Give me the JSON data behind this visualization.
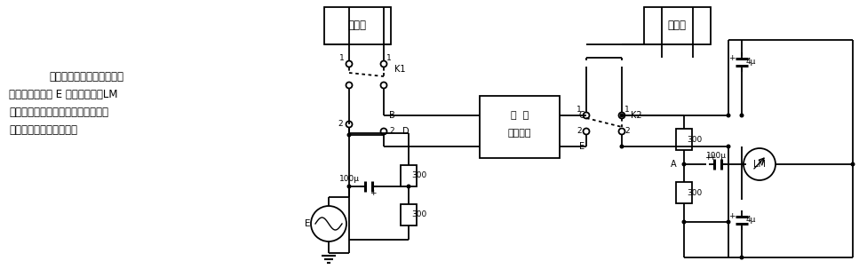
{
  "bg_color": "#ffffff",
  "description_lines": [
    "对地不平衡测试电路　该测",
    "试电路由信号源 E 作平衡输出；LM",
    "为平衡情况指示器。引入被测通话回",
    "路，即可完成此项测试。"
  ],
  "fig_width": 9.76,
  "fig_height": 3.03,
  "dpi": 100
}
